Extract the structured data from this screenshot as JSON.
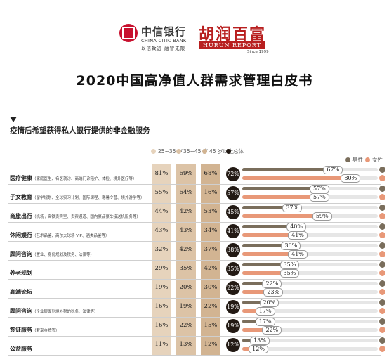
{
  "header": {
    "citic_cn": "中信银行",
    "citic_en": "CHINA CITIC BANK",
    "citic_slogan": "以信致远 融智无限",
    "hurun_cn": "胡润百富",
    "hurun_en": "HURUN REPORT",
    "hurun_since": "Since 1999"
  },
  "title": "2020中国高净值人群需求管理白皮书",
  "section_title": "疫情后希望获得私人银行提供的非金融服务",
  "legend": {
    "age_groups": [
      "25~35 岁",
      "35~45 岁",
      "45 岁以上"
    ],
    "total": "总体",
    "male": "男性",
    "female": "女性"
  },
  "colors": {
    "age_col": [
      "#e6d3bc",
      "#dcc3a6",
      "#d2b492"
    ],
    "total_badge": "#231a14",
    "male_bar": "#7a6e5c",
    "female_bar": "#e89878",
    "track": "#e6e6e6",
    "brand_red": "#b81f1f"
  },
  "chart_data": {
    "type": "table",
    "columns": [
      "25~35 岁",
      "35~45 岁",
      "45 岁以上",
      "总体",
      "男性",
      "女性"
    ],
    "rows": [
      {
        "name": "医疗健康",
        "sub": "（家庭医生、名医就诊、高端门诊陪护、体检、境外医疗等）",
        "age": [
          "81%",
          "69%",
          "68%"
        ],
        "total": "72%",
        "male": 67,
        "female": 80
      },
      {
        "name": "子女教育",
        "sub": "（留学规划、全球实习计划、国际课程、寒暑令营、境外游学等）",
        "age": [
          "55%",
          "64%",
          "16%"
        ],
        "total": "57%",
        "male": 57,
        "female": 57
      },
      {
        "name": "商旅出行",
        "sub": "（机场 / 高铁贵宾室、贵宾通道、国内豪品豪车接送机服务等）",
        "age": [
          "44%",
          "42%",
          "53%"
        ],
        "total": "45%",
        "male": 37,
        "female": 59
      },
      {
        "name": "休闲娱行",
        "sub": "（艺术品鉴、高尔夫球场 VIP、酒类品鉴等）",
        "age": [
          "43%",
          "43%",
          "34%"
        ],
        "total": "41%",
        "male": 40,
        "female": 41
      },
      {
        "name": "顾问咨询",
        "sub": "（置业、身份规划及税务、法律等）",
        "age": [
          "32%",
          "42%",
          "37%"
        ],
        "total": "38%",
        "male": 36,
        "female": 41
      },
      {
        "name": "养老规划",
        "sub": "",
        "age": [
          "29%",
          "35%",
          "42%"
        ],
        "total": "35%",
        "male": 35,
        "female": 35
      },
      {
        "name": "高端论坛",
        "sub": "",
        "age": [
          "19%",
          "20%",
          "30%"
        ],
        "total": "22%",
        "male": 22,
        "female": 23
      },
      {
        "name": "顾问咨询",
        "sub": "（企业层面到境外税的税务、法律等）",
        "age": [
          "16%",
          "19%",
          "22%"
        ],
        "total": "19%",
        "male": 20,
        "female": 17
      },
      {
        "name": "签证服务",
        "sub": "（奢享金牌签）",
        "age": [
          "16%",
          "22%",
          "15%"
        ],
        "total": "19%",
        "male": 17,
        "female": 22
      },
      {
        "name": "公益服务",
        "sub": "",
        "age": [
          "11%",
          "13%",
          "12%"
        ],
        "total": "12%",
        "male": 13,
        "female": 12
      }
    ]
  }
}
